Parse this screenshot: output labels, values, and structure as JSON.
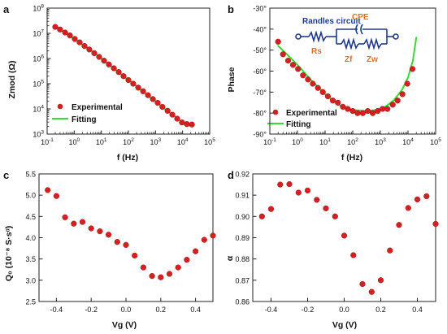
{
  "chart_data": [
    {
      "panel": "a",
      "type": "scatter",
      "x_scale": "log",
      "y_scale": "log",
      "xlim": [
        0.1,
        100000
      ],
      "ylim": [
        1000,
        100000000
      ],
      "xlabel": "f (Hz)",
      "ylabel": "Zmod (Ω)",
      "x_ticks": [
        0.1,
        1,
        10,
        100,
        1000,
        10000,
        100000
      ],
      "x_tick_labels": [
        [
          "10",
          "-1"
        ],
        [
          "10",
          "0"
        ],
        [
          "10",
          "1"
        ],
        [
          "10",
          "2"
        ],
        [
          "10",
          "3"
        ],
        [
          "10",
          "4"
        ],
        [
          "10",
          "5"
        ]
      ],
      "y_ticks": [
        1000,
        10000,
        100000,
        1000000,
        10000000,
        100000000
      ],
      "y_tick_labels": [
        [
          "10",
          "3"
        ],
        [
          "10",
          "4"
        ],
        [
          "10",
          "5"
        ],
        [
          "10",
          "6"
        ],
        [
          "10",
          "7"
        ],
        [
          "10",
          "8"
        ]
      ],
      "legend": {
        "placement": "bottom-left",
        "entries": [
          "Experimental",
          "Fitting"
        ]
      },
      "series": [
        {
          "name": "Experimental",
          "marker": "circle",
          "color": "#d42020",
          "x": [
            0.2,
            0.3,
            0.46,
            0.69,
            1.05,
            1.58,
            2.4,
            3.6,
            5.5,
            8.3,
            12.6,
            19,
            29,
            44,
            66,
            100,
            150,
            230,
            350,
            530,
            800,
            1200,
            1800,
            2800,
            4200,
            6300,
            9500,
            14500,
            22000
          ],
          "y": [
            18000000,
            14200000,
            10800000,
            8300000,
            6000000,
            4400000,
            3150000,
            2280000,
            1630000,
            1160000,
            820000,
            580000,
            410000,
            290000,
            200000,
            140000,
            100000,
            70000,
            50000,
            35000,
            24500,
            17500,
            12000,
            8400,
            5900,
            4100,
            2900,
            2500,
            2400
          ]
        },
        {
          "name": "Fitting",
          "type": "line",
          "color": "#33dd33",
          "x": [
            0.2,
            0.5,
            1,
            3,
            10,
            30,
            100,
            300,
            1000,
            3000,
            10000,
            22000
          ],
          "y": [
            18000000,
            10200000,
            6000000,
            2700000,
            1000000,
            400000,
            140000,
            55000,
            20000,
            7700,
            2900,
            2400
          ]
        }
      ]
    },
    {
      "panel": "b",
      "type": "scatter",
      "x_scale": "log",
      "xlim": [
        0.1,
        100000
      ],
      "ylim": [
        -90,
        -30
      ],
      "xlabel": "f (Hz)",
      "ylabel": "Phase",
      "x_ticks": [
        0.1,
        1,
        10,
        100,
        1000,
        10000,
        100000
      ],
      "x_tick_labels": [
        [
          "10",
          "-1"
        ],
        [
          "10",
          "0"
        ],
        [
          "10",
          "1"
        ],
        [
          "10",
          "2"
        ],
        [
          "10",
          "3"
        ],
        [
          "10",
          "4"
        ],
        [
          "10",
          "5"
        ]
      ],
      "y_ticks": [
        -90,
        -80,
        -70,
        -60,
        -50,
        -40,
        -30
      ],
      "y_tick_labels": [
        "-90°",
        "-80°",
        "-70°",
        "-60°",
        "-50°",
        "-40°",
        "-30°"
      ],
      "legend": {
        "placement": "bottom-left",
        "entries": [
          "Experimental",
          "Fitting"
        ]
      },
      "inset": {
        "title": "Randles circuit",
        "labels": [
          "CPE",
          "Rs",
          "Zf",
          "Zw"
        ]
      },
      "series": [
        {
          "name": "Experimental",
          "marker": "circle",
          "color": "#d42020",
          "x": [
            0.2,
            0.3,
            0.46,
            0.69,
            1.05,
            1.58,
            2.4,
            3.6,
            5.5,
            8.3,
            12.6,
            19,
            29,
            44,
            66,
            100,
            150,
            230,
            350,
            530,
            800,
            1200,
            1800,
            2800,
            4200,
            6300,
            9500,
            14500
          ],
          "y": [
            -46,
            -52,
            -55,
            -57,
            -59,
            -62,
            -64,
            -66,
            -68,
            -70,
            -72,
            -74,
            -75,
            -77,
            -78,
            -79,
            -80,
            -80,
            -79,
            -80,
            -79,
            -78,
            -78,
            -76,
            -74,
            -71,
            -66,
            -59
          ]
        },
        {
          "name": "Fitting",
          "type": "line",
          "color": "#33dd33",
          "x": [
            0.2,
            0.5,
            1,
            3,
            10,
            30,
            100,
            300,
            700,
            1500,
            3000,
            6000,
            10000,
            15000,
            20000
          ],
          "y": [
            -48,
            -53,
            -57,
            -64,
            -71,
            -76,
            -78.5,
            -79,
            -78.5,
            -77,
            -74,
            -69,
            -63,
            -55,
            -44
          ]
        }
      ]
    },
    {
      "panel": "c",
      "type": "scatter",
      "xlim": [
        -0.5,
        0.5
      ],
      "ylim": [
        2.5,
        5.5
      ],
      "xlabel": "Vg (V)",
      "ylabel": "Q₀ (10⁻⁸ S·sᵅ)",
      "x_ticks": [
        -0.4,
        -0.2,
        0.0,
        0.2,
        0.4
      ],
      "x_tick_labels": [
        "-0.4",
        "-0.2",
        "0.0",
        "0.2",
        "0.4"
      ],
      "y_ticks": [
        2.5,
        3.0,
        3.5,
        4.0,
        4.5,
        5.0,
        5.5
      ],
      "y_tick_labels": [
        "2.5",
        "3.0",
        "3.5",
        "4.0",
        "4.5",
        "5.0",
        "5.5"
      ],
      "series": [
        {
          "marker": "circle",
          "color": "#d42020",
          "x": [
            -0.45,
            -0.4,
            -0.35,
            -0.3,
            -0.25,
            -0.2,
            -0.15,
            -0.1,
            -0.05,
            0.0,
            0.05,
            0.1,
            0.15,
            0.2,
            0.25,
            0.3,
            0.35,
            0.4,
            0.45,
            0.5
          ],
          "y": [
            5.12,
            4.98,
            4.48,
            4.33,
            4.37,
            4.22,
            4.15,
            4.07,
            3.9,
            3.83,
            3.58,
            3.3,
            3.1,
            3.07,
            3.15,
            3.3,
            3.48,
            3.68,
            3.95,
            4.05
          ]
        }
      ]
    },
    {
      "panel": "d",
      "type": "scatter",
      "xlim": [
        -0.5,
        0.5
      ],
      "ylim": [
        0.86,
        0.92
      ],
      "xlabel": "Vg (V)",
      "ylabel": "α",
      "x_ticks": [
        -0.4,
        -0.2,
        0.0,
        0.2,
        0.4
      ],
      "x_tick_labels": [
        "-0.4",
        "-0.2",
        "0.0",
        "0.2",
        "0.4"
      ],
      "y_ticks": [
        0.86,
        0.87,
        0.88,
        0.89,
        0.9,
        0.91,
        0.92
      ],
      "y_tick_labels": [
        "0.86",
        "0.87",
        "0.88",
        "0.89",
        "0.90",
        "0.91",
        "0.92"
      ],
      "series": [
        {
          "marker": "circle",
          "color": "#d42020",
          "x": [
            -0.45,
            -0.4,
            -0.35,
            -0.3,
            -0.25,
            -0.2,
            -0.15,
            -0.1,
            -0.05,
            0.0,
            0.05,
            0.1,
            0.15,
            0.2,
            0.25,
            0.3,
            0.35,
            0.4,
            0.45,
            0.5
          ],
          "y": [
            0.9,
            0.9035,
            0.915,
            0.9152,
            0.9112,
            0.9122,
            0.9078,
            0.9038,
            0.9,
            0.891,
            0.8818,
            0.8682,
            0.8645,
            0.87,
            0.884,
            0.896,
            0.904,
            0.908,
            0.9095,
            0.8965
          ]
        }
      ]
    }
  ]
}
